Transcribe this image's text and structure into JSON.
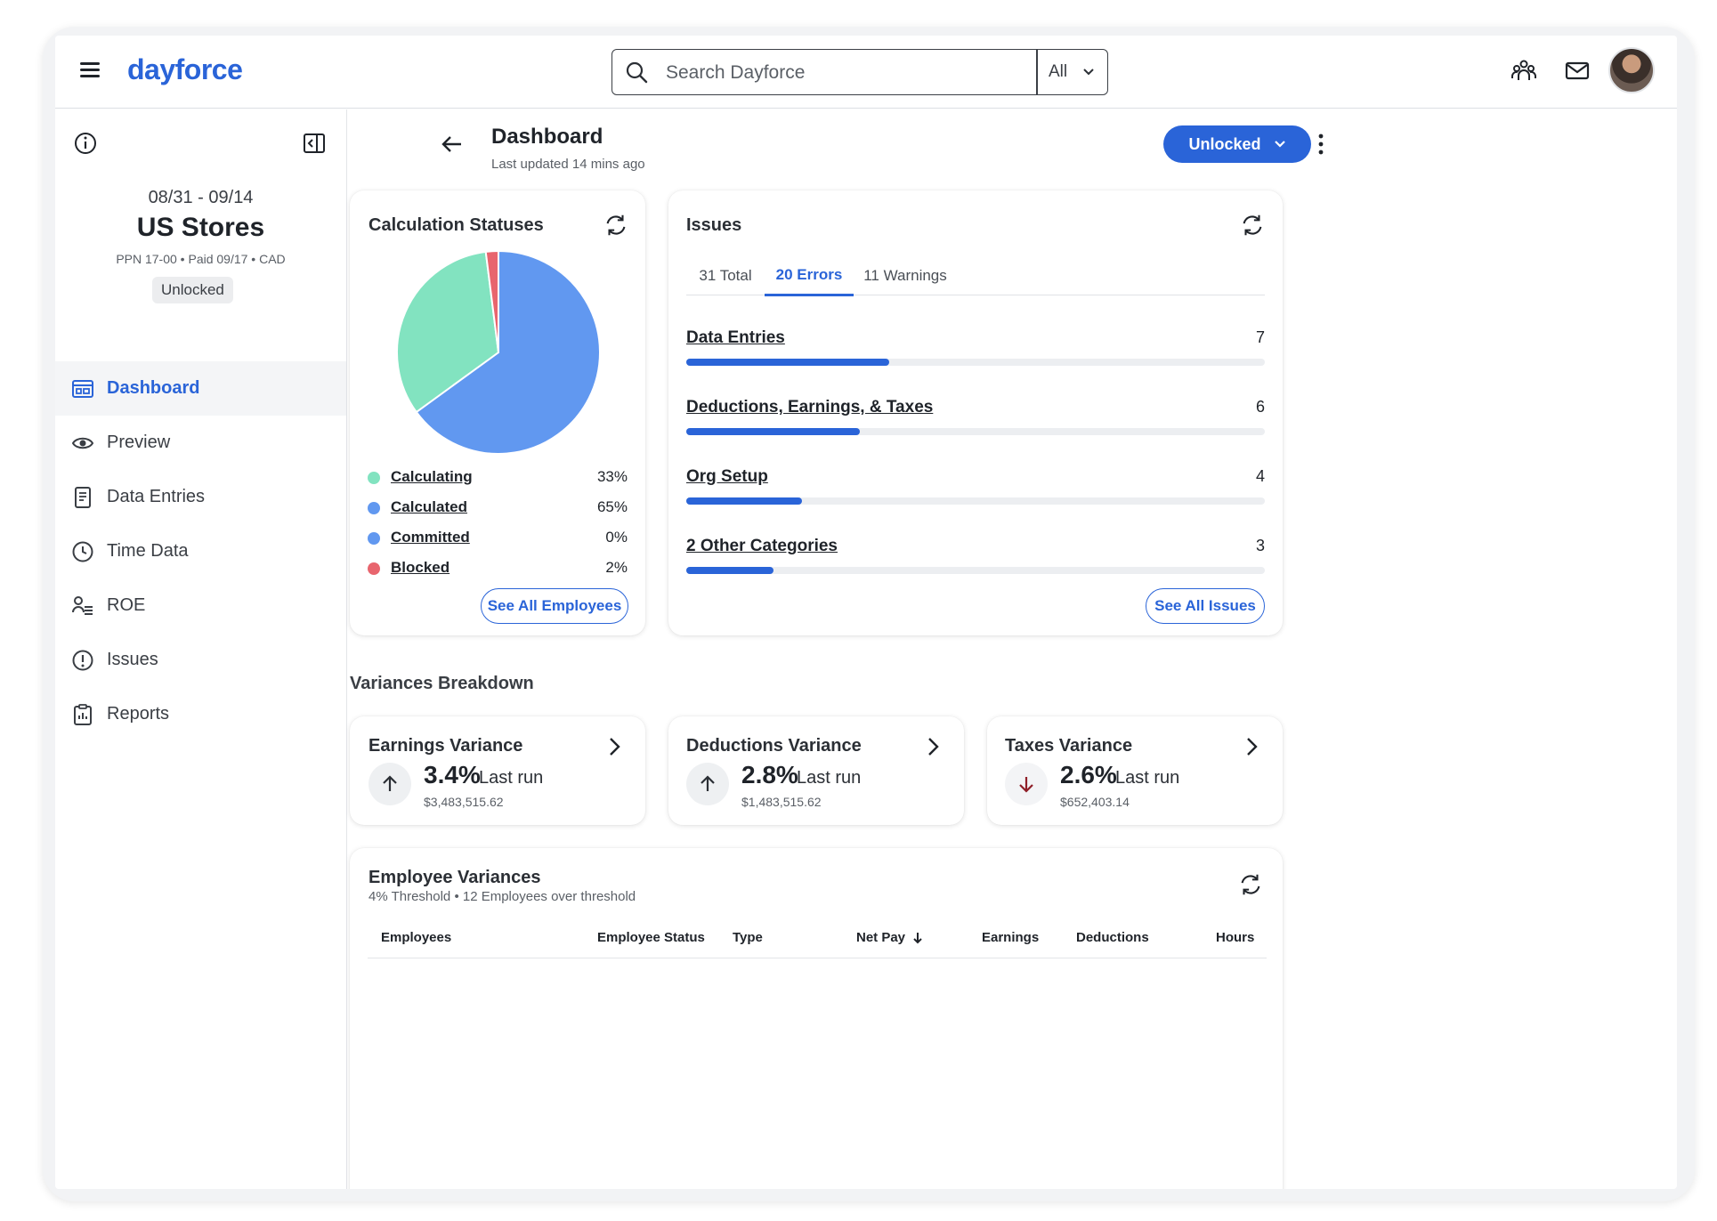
{
  "app": {
    "logo_text": "dayforce",
    "brand_color": "#2a64d8"
  },
  "search": {
    "placeholder": "Search Dayforce",
    "scope": "All"
  },
  "topbar": {
    "icons": [
      "people-icon",
      "mail-icon"
    ],
    "avatar": "user-avatar"
  },
  "period": {
    "dates": "08/31 - 09/14",
    "name": "US Stores",
    "meta": "PPN 17-00 • Paid 09/17 • CAD",
    "status": "Unlocked"
  },
  "sidebar": {
    "items": [
      {
        "label": "Dashboard",
        "icon": "dashboard-icon",
        "active": true
      },
      {
        "label": "Preview",
        "icon": "eye-icon"
      },
      {
        "label": "Data Entries",
        "icon": "document-icon"
      },
      {
        "label": "Time Data",
        "icon": "clock-icon"
      },
      {
        "label": "ROE",
        "icon": "roe-icon"
      },
      {
        "label": "Issues",
        "icon": "alert-icon"
      },
      {
        "label": "Reports",
        "icon": "clipboard-icon"
      }
    ]
  },
  "header": {
    "title": "Dashboard",
    "subtitle": "Last updated 14 mins ago",
    "status_button": "Unlocked"
  },
  "calc_statuses": {
    "title": "Calculation Statuses",
    "button": "See All Employees",
    "items": [
      {
        "label": "Calculating",
        "value": "33%",
        "pct": 33,
        "color": "#82e3c0"
      },
      {
        "label": "Calculated",
        "value": "65%",
        "pct": 65,
        "color": "#6198f0"
      },
      {
        "label": "Committed",
        "value": "0%",
        "pct": 0,
        "color": "#6198f0"
      },
      {
        "label": "Blocked",
        "value": "2%",
        "pct": 2,
        "color": "#e8656e"
      }
    ]
  },
  "issues": {
    "title": "Issues",
    "tabs": [
      {
        "label": "31 Total",
        "active": false
      },
      {
        "label": "20 Errors",
        "active": true
      },
      {
        "label": "11 Warnings",
        "active": false
      }
    ],
    "rows": [
      {
        "label": "Data Entries",
        "count": "7",
        "fraction": 0.35
      },
      {
        "label": "Deductions, Earnings, & Taxes",
        "count": "6",
        "fraction": 0.3
      },
      {
        "label": "Org Setup",
        "count": "4",
        "fraction": 0.2
      },
      {
        "label": "2 Other Categories",
        "count": "3",
        "fraction": 0.15
      }
    ],
    "button": "See All Issues"
  },
  "variances": {
    "section_title": "Variances Breakdown",
    "cards": [
      {
        "title": "Earnings Variance",
        "pct": "3.4%",
        "run": "Last run",
        "amount": "$3,483,515.62",
        "direction": "up"
      },
      {
        "title": "Deductions Variance",
        "pct": "2.8%",
        "run": "Last run",
        "amount": "$1,483,515.62",
        "direction": "up"
      },
      {
        "title": "Taxes Variance",
        "pct": "2.6%",
        "run": "Last run",
        "amount": "$652,403.14",
        "direction": "down"
      }
    ]
  },
  "employee_variances": {
    "title": "Employee Variances",
    "subtitle": "4% Threshold • 12 Employees over threshold",
    "columns": [
      "Employees",
      "Employee Status",
      "Type",
      "Net Pay",
      "Earnings",
      "Deductions",
      "Hours"
    ],
    "sorted_column": "Net Pay"
  }
}
